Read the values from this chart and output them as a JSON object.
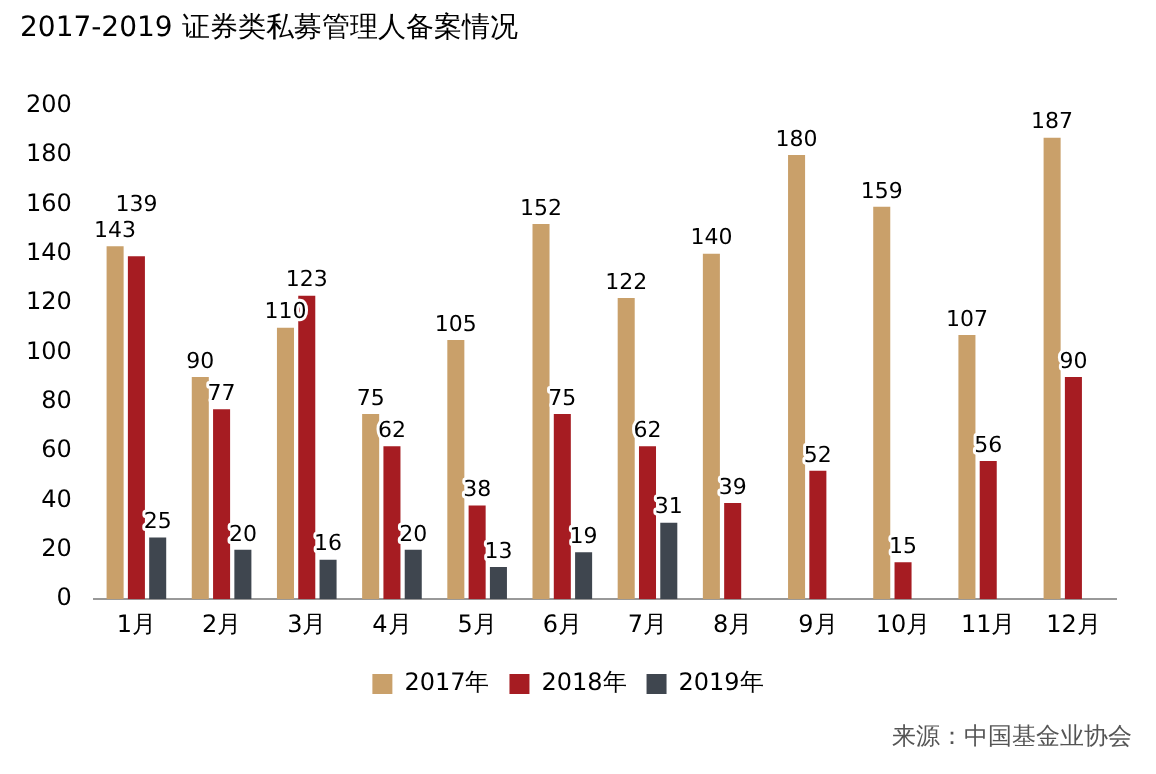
{
  "chart_data": {
    "type": "bar",
    "title": "2017-2019 证券类私募管理人备案情况",
    "categories": [
      "1月",
      "2月",
      "3月",
      "4月",
      "5月",
      "6月",
      "7月",
      "8月",
      "9月",
      "10月",
      "11月",
      "12月"
    ],
    "series": [
      {
        "name": "2017年",
        "color": "#c9a06a",
        "values": [
          143,
          90,
          110,
          75,
          105,
          152,
          122,
          140,
          180,
          159,
          107,
          187
        ]
      },
      {
        "name": "2018年",
        "color": "#a61c22",
        "values": [
          139,
          77,
          123,
          62,
          38,
          75,
          62,
          39,
          52,
          15,
          56,
          90
        ]
      },
      {
        "name": "2019年",
        "color": "#3f464f",
        "values": [
          25,
          20,
          16,
          20,
          13,
          19,
          31,
          null,
          null,
          null,
          null,
          null
        ]
      }
    ],
    "ylim": [
      0,
      200
    ],
    "yticks": [
      0,
      20,
      40,
      60,
      80,
      100,
      120,
      140,
      160,
      180,
      200
    ],
    "grid": false,
    "legend": "bottom",
    "data_labels": true,
    "annotations": [
      "来源：中国基金业协会"
    ]
  }
}
